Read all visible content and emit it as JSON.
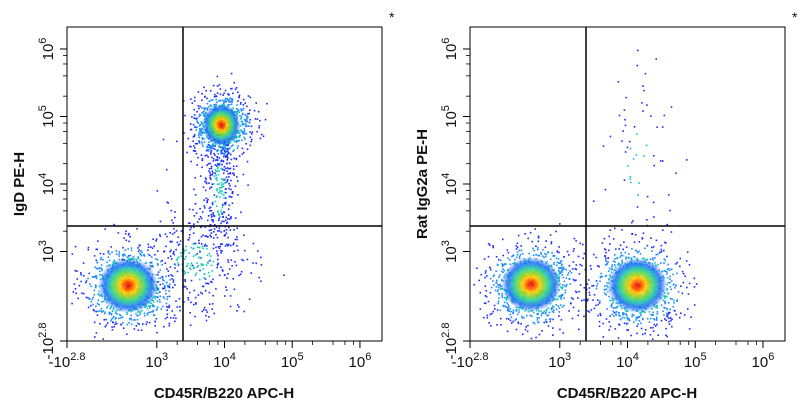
{
  "chart_data": [
    {
      "type": "scatter",
      "subtype": "flow-cytometry-density-dot-plot",
      "corner_mark": "*",
      "xlabel": "CD45R/B220 APC-H",
      "ylabel": "IgD PE-H",
      "x_scale": "biexponential",
      "y_scale": "biexponential",
      "xlim": [
        -631,
        1000000
      ],
      "ylim": [
        -631,
        1000000
      ],
      "x_ticks": [
        {
          "base": "-10",
          "exp": "2.8",
          "value": -631
        },
        {
          "base": "10",
          "exp": "3",
          "value": 1000
        },
        {
          "base": "10",
          "exp": "4",
          "value": 10000
        },
        {
          "base": "10",
          "exp": "5",
          "value": 100000
        },
        {
          "base": "10",
          "exp": "6",
          "value": 1000000
        }
      ],
      "y_ticks": [
        {
          "base": "-10",
          "exp": "2.8",
          "value": -631
        },
        {
          "base": "10",
          "exp": "3",
          "value": 1000
        },
        {
          "base": "10",
          "exp": "4",
          "value": 10000
        },
        {
          "base": "10",
          "exp": "5",
          "value": 100000
        },
        {
          "base": "10",
          "exp": "6",
          "value": 1000000
        }
      ],
      "quadrant_gates": {
        "x": 2100,
        "y": 1800
      },
      "populations": [
        {
          "center_x": 480,
          "center_y": 380,
          "spread": "large",
          "density": "high"
        },
        {
          "center_x": 9000,
          "center_y": 75000,
          "spread": "medium",
          "density": "high"
        },
        {
          "center_x": 8000,
          "center_y": 8000,
          "spread": "vertical-streak",
          "density": "low"
        },
        {
          "center_x": 3500,
          "center_y": 800,
          "spread": "diffuse",
          "density": "low"
        }
      ],
      "grid": false,
      "legend": "none"
    },
    {
      "type": "scatter",
      "subtype": "flow-cytometry-density-dot-plot",
      "corner_mark": "*",
      "xlabel": "CD45R/B220 APC-H",
      "ylabel": "Rat IgG2a PE-H",
      "x_scale": "biexponential",
      "y_scale": "biexponential",
      "xlim": [
        -631,
        1000000
      ],
      "ylim": [
        -631,
        1000000
      ],
      "x_ticks": [
        {
          "base": "-10",
          "exp": "2.8",
          "value": -631
        },
        {
          "base": "10",
          "exp": "3",
          "value": 1000
        },
        {
          "base": "10",
          "exp": "4",
          "value": 10000
        },
        {
          "base": "10",
          "exp": "5",
          "value": 100000
        },
        {
          "base": "10",
          "exp": "6",
          "value": 1000000
        }
      ],
      "y_ticks": [
        {
          "base": "-10",
          "exp": "2.8",
          "value": -631
        },
        {
          "base": "10",
          "exp": "3",
          "value": 1000
        },
        {
          "base": "10",
          "exp": "4",
          "value": 10000
        },
        {
          "base": "10",
          "exp": "5",
          "value": 100000
        },
        {
          "base": "10",
          "exp": "6",
          "value": 1000000
        }
      ],
      "quadrant_gates": {
        "x": 2100,
        "y": 1800
      },
      "populations": [
        {
          "center_x": 480,
          "center_y": 400,
          "spread": "large",
          "density": "high"
        },
        {
          "center_x": 14000,
          "center_y": 380,
          "spread": "large",
          "density": "high"
        },
        {
          "center_x": 14000,
          "center_y": 20000,
          "spread": "sparse",
          "density": "very-low"
        }
      ],
      "grid": false,
      "legend": "none"
    }
  ]
}
